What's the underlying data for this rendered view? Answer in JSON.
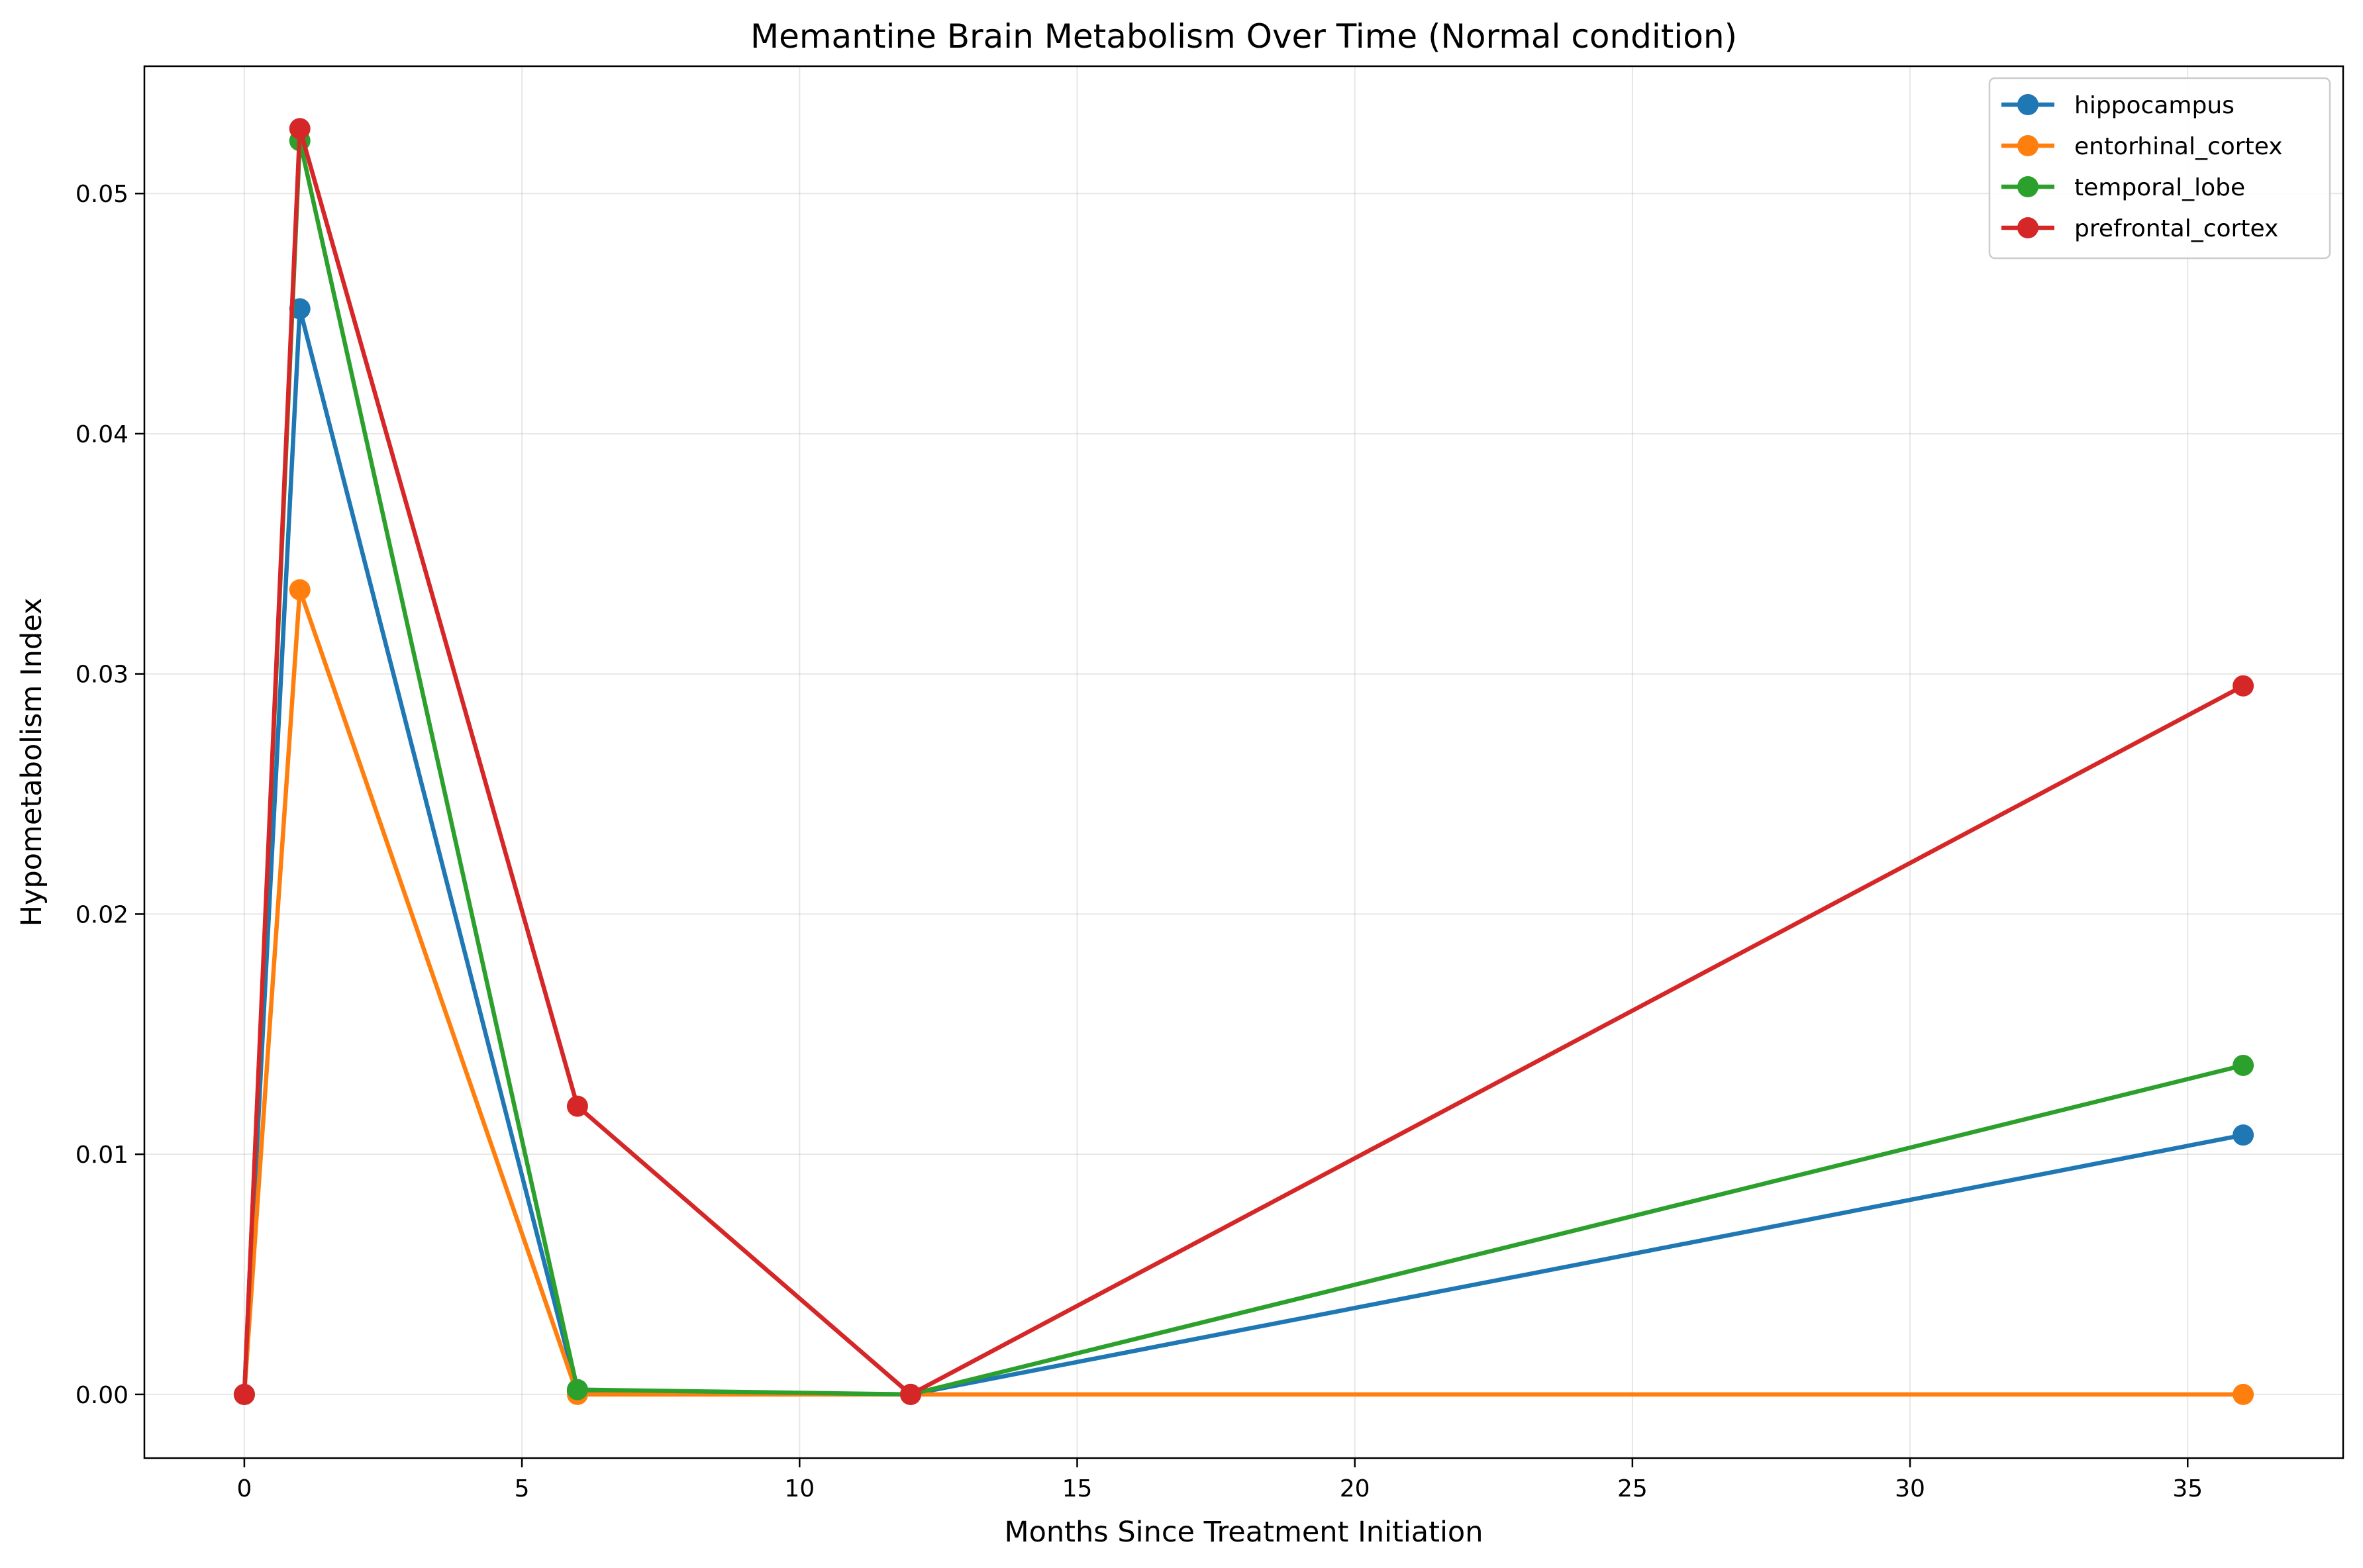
{
  "chart_data": {
    "type": "line",
    "title": "Memantine Brain Metabolism Over Time (Normal condition)",
    "xlabel": "Months Since Treatment Initiation",
    "ylabel": "Hypometabolism Index",
    "xlim": [
      -1.8,
      37.8
    ],
    "ylim": [
      -0.00265,
      0.0553
    ],
    "xticks": [
      0,
      5,
      10,
      15,
      20,
      25,
      30,
      35
    ],
    "xtick_labels": [
      "0",
      "5",
      "10",
      "15",
      "20",
      "25",
      "30",
      "35"
    ],
    "yticks": [
      0.0,
      0.01,
      0.02,
      0.03,
      0.04,
      0.05
    ],
    "ytick_labels": [
      "0.00",
      "0.01",
      "0.02",
      "0.03",
      "0.04",
      "0.05"
    ],
    "grid": true,
    "legend_position": "top-right",
    "x": [
      0,
      1,
      6,
      12,
      36
    ],
    "series": [
      {
        "name": "hippocampus",
        "color": "#1f77b4",
        "values": [
          0.0,
          0.0452,
          0.0001,
          0.0,
          0.0108
        ]
      },
      {
        "name": "entorhinal_cortex",
        "color": "#ff7f0e",
        "values": [
          0.0,
          0.0335,
          0.0,
          0.0,
          0.0
        ]
      },
      {
        "name": "temporal_lobe",
        "color": "#2ca02c",
        "values": [
          0.0,
          0.0522,
          0.0002,
          0.0,
          0.0137
        ]
      },
      {
        "name": "prefrontal_cortex",
        "color": "#d62728",
        "values": [
          0.0,
          0.0527,
          0.012,
          0.0,
          0.0295
        ]
      }
    ]
  }
}
